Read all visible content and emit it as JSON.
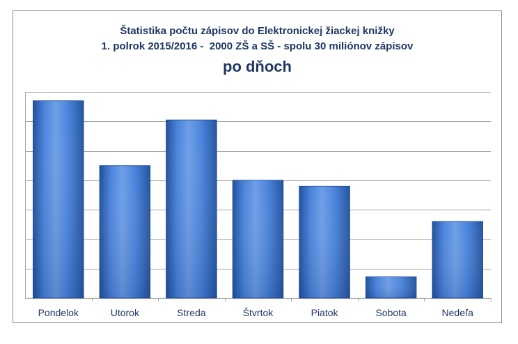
{
  "chart_data": {
    "type": "bar",
    "title_lines": [
      "Štatistika počtu zápisov do Elektronickej žiackej knižky",
      "1. polrok 2015/2016 -  2000 ZŠ a SŠ - spolu 30 miliónov zápisov"
    ],
    "subtitle": "po dňoch",
    "categories": [
      "Pondelok",
      "Utorok",
      "Streda",
      "Štvrtok",
      "Piatok",
      "Sobota",
      "Nedeľa"
    ],
    "values": [
      6.7,
      4.5,
      6.05,
      4.0,
      3.8,
      0.72,
      2.6
    ],
    "ylim": [
      0,
      7
    ],
    "grid": true,
    "y_tick_labels_shown": false,
    "legend": "none",
    "colors": {
      "bar_light": "#6d9ee6",
      "bar_mid": "#3f77d3",
      "bar_dark": "#1f4e9c",
      "grid": "#a6a6a6",
      "title": "#1f3763"
    }
  }
}
